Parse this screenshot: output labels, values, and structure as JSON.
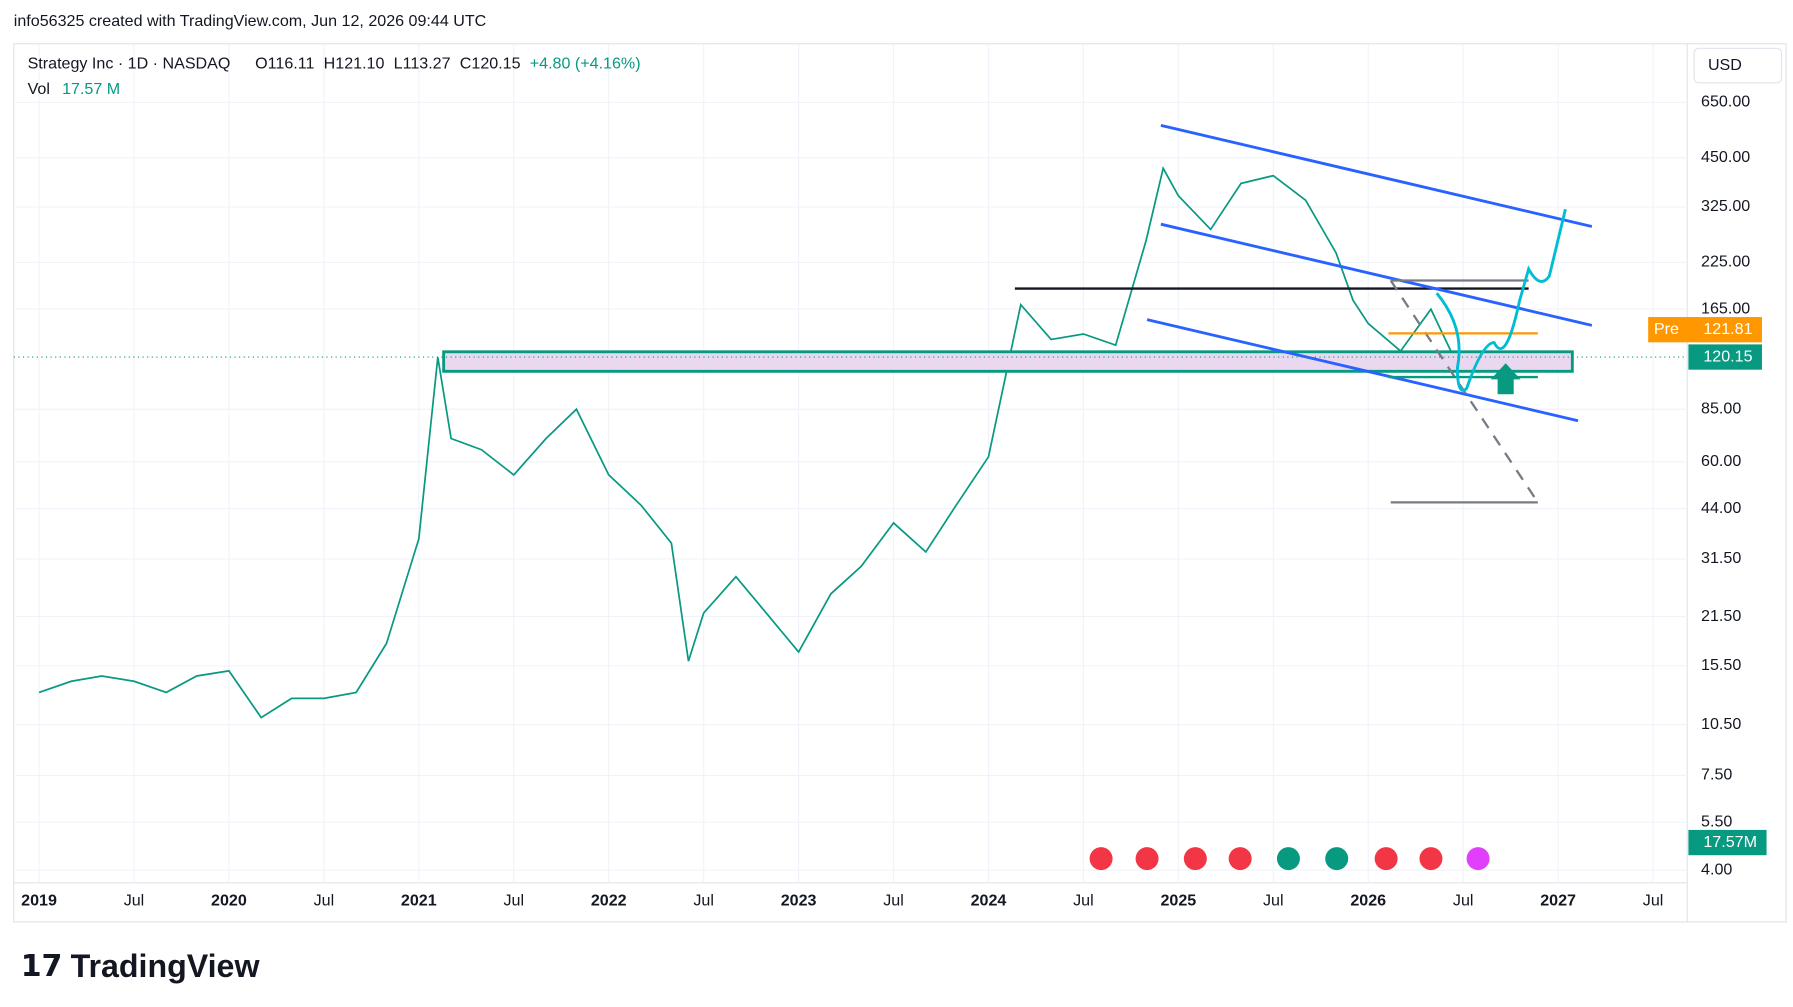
{
  "header": "info56325 created with TradingView.com, Jun 12, 2026 09:44 UTC",
  "chart_data": {
    "type": "line",
    "symbol": "Strategy Inc · 1D · NASDAQ",
    "ohlc": [
      "O116.11",
      "H121.10",
      "L113.27",
      "C120.15",
      "+4.80 (+4.16%)"
    ],
    "volume_label": "Vol",
    "volume_value": "17.57 M",
    "currency": "USD",
    "log_scale": true,
    "x": [
      2019.0,
      2019.17,
      2019.33,
      2019.5,
      2019.67,
      2019.83,
      2020.0,
      2020.17,
      2020.33,
      2020.5,
      2020.67,
      2020.83,
      2021.0,
      2021.1,
      2021.17,
      2021.33,
      2021.5,
      2021.67,
      2021.83,
      2022.0,
      2022.17,
      2022.33,
      2022.42,
      2022.5,
      2022.67,
      2022.83,
      2023.0,
      2023.17,
      2023.33,
      2023.5,
      2023.67,
      2023.83,
      2024.0,
      2024.17,
      2024.33,
      2024.5,
      2024.67,
      2024.83,
      2024.92,
      2025.0,
      2025.17,
      2025.33,
      2025.5,
      2025.67,
      2025.83,
      2025.92,
      2026.0,
      2026.17,
      2026.33,
      2026.45
    ],
    "series": [
      {
        "name": "Strategy Inc",
        "color": "#089981",
        "values": [
          13,
          14,
          14.5,
          14,
          13,
          14.5,
          15,
          11,
          12.5,
          12.5,
          13,
          18,
          36,
          120,
          70,
          65,
          55,
          70,
          85,
          55,
          45,
          35,
          16,
          22,
          28,
          22,
          17,
          25,
          30,
          40,
          33,
          45,
          62,
          170,
          135,
          140,
          130,
          260,
          420,
          350,
          280,
          380,
          400,
          340,
          240,
          175,
          150,
          125,
          165,
          120.15
        ]
      }
    ],
    "xlim": [
      2018.867,
      2027.68
    ],
    "xticks": [
      {
        "value": 2019,
        "label": "2019"
      },
      {
        "value": 2019.5,
        "label": "Jul"
      },
      {
        "value": 2020,
        "label": "2020"
      },
      {
        "value": 2020.5,
        "label": "Jul"
      },
      {
        "value": 2021,
        "label": "2021"
      },
      {
        "value": 2021.5,
        "label": "Jul"
      },
      {
        "value": 2022,
        "label": "2022"
      },
      {
        "value": 2022.5,
        "label": "Jul"
      },
      {
        "value": 2023,
        "label": "2023"
      },
      {
        "value": 2023.5,
        "label": "Jul"
      },
      {
        "value": 2024,
        "label": "2024"
      },
      {
        "value": 2024.5,
        "label": "Jul"
      },
      {
        "value": 2025,
        "label": "2025"
      },
      {
        "value": 2025.5,
        "label": "Jul"
      },
      {
        "value": 2026,
        "label": "2026"
      },
      {
        "value": 2026.5,
        "label": "Jul"
      },
      {
        "value": 2027,
        "label": "2027"
      },
      {
        "value": 2027.5,
        "label": "Jul"
      }
    ],
    "ylim": [
      3.68,
      959
    ],
    "yticks": [
      {
        "value": 4,
        "label": "4.00"
      },
      {
        "value": 5.5,
        "label": "5.50"
      },
      {
        "value": 7.5,
        "label": "7.50"
      },
      {
        "value": 10.5,
        "label": "10.50"
      },
      {
        "value": 15.5,
        "label": "15.50"
      },
      {
        "value": 21.5,
        "label": "21.50"
      },
      {
        "value": 31.5,
        "label": "31.50"
      },
      {
        "value": 44,
        "label": "44.00"
      },
      {
        "value": 60,
        "label": "60.00"
      },
      {
        "value": 85,
        "label": "85.00"
      },
      {
        "value": 165,
        "label": "165.00"
      },
      {
        "value": 225,
        "label": "225.00"
      },
      {
        "value": 325,
        "label": "325.00"
      },
      {
        "value": 450,
        "label": "450.00"
      },
      {
        "value": 650,
        "label": "650.00"
      }
    ],
    "last_price": {
      "value": 120.15,
      "label": "120.15"
    },
    "pre_market": {
      "tag": "Pre",
      "value": 121.81,
      "label": "121.81"
    },
    "volume_tag": "17.57M",
    "grid": true
  },
  "brand": "TradingView"
}
